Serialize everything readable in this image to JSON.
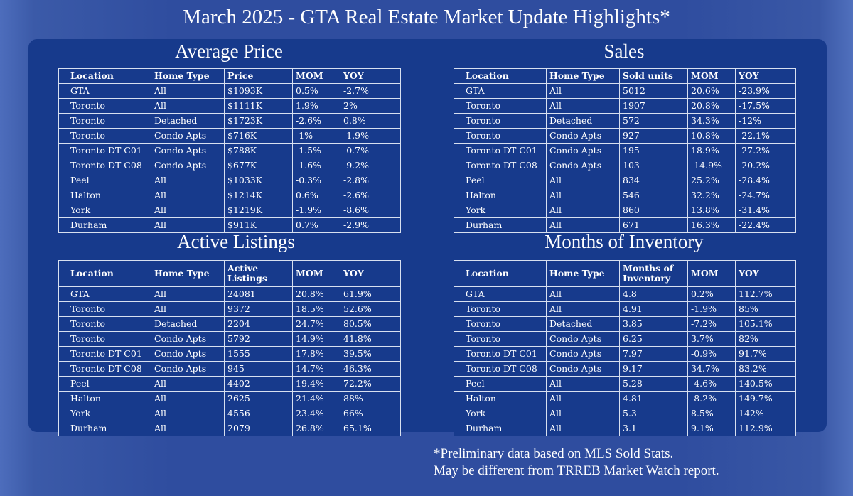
{
  "title": "March 2025 - GTA Real Estate Market Update Highlights*",
  "colors": {
    "positive": "#40e040",
    "negative": "#ff7fb0",
    "panel": "#173a8c"
  },
  "sections": [
    {
      "key": "average_price",
      "title": "Average Price",
      "headers": [
        "Location",
        "Home Type",
        "Price",
        "MOM",
        "YOY"
      ],
      "rows": [
        [
          "GTA",
          "All",
          "$1093K",
          "0.5%",
          "-2.7%"
        ],
        [
          "Toronto",
          "All",
          "$1111K",
          "1.9%",
          "2%"
        ],
        [
          "Toronto",
          "Detached",
          "$1723K",
          "-2.6%",
          "0.8%"
        ],
        [
          "Toronto",
          "Condo Apts",
          "$716K",
          "-1%",
          "-1.9%"
        ],
        [
          "Toronto DT C01",
          "Condo Apts",
          "$788K",
          "-1.5%",
          "-0.7%"
        ],
        [
          "Toronto DT C08",
          "Condo Apts",
          "$677K",
          "-1.6%",
          "-9.2%"
        ],
        [
          "Peel",
          "All",
          "$1033K",
          "-0.3%",
          "-2.8%"
        ],
        [
          "Halton",
          "All",
          "$1214K",
          "0.6%",
          "-2.6%"
        ],
        [
          "York",
          "All",
          "$1219K",
          "-1.9%",
          "-8.6%"
        ],
        [
          "Durham",
          "All",
          "$911K",
          "0.7%",
          "-2.9%"
        ]
      ]
    },
    {
      "key": "sales",
      "title": "Sales",
      "headers": [
        "Location",
        "Home Type",
        "Sold units",
        "MOM",
        "YOY"
      ],
      "rows": [
        [
          "GTA",
          "All",
          "5012",
          "20.6%",
          "-23.9%"
        ],
        [
          "Toronto",
          "All",
          "1907",
          "20.8%",
          "-17.5%"
        ],
        [
          "Toronto",
          "Detached",
          "572",
          "34.3%",
          "-12%"
        ],
        [
          "Toronto",
          "Condo Apts",
          "927",
          "10.8%",
          "-22.1%"
        ],
        [
          "Toronto DT C01",
          "Condo Apts",
          "195",
          "18.9%",
          "-27.2%"
        ],
        [
          "Toronto DT C08",
          "Condo Apts",
          "103",
          "-14.9%",
          "-20.2%"
        ],
        [
          "Peel",
          "All",
          "834",
          "25.2%",
          "-28.4%"
        ],
        [
          "Halton",
          "All",
          "546",
          "32.2%",
          "-24.7%"
        ],
        [
          "York",
          "All",
          "860",
          "13.8%",
          "-31.4%"
        ],
        [
          "Durham",
          "All",
          "671",
          "16.3%",
          "-22.4%"
        ]
      ]
    },
    {
      "key": "active_listings",
      "title": "Active Listings",
      "headers": [
        "Location",
        "Home Type",
        "Active Listings",
        "MOM",
        "YOY"
      ],
      "rows": [
        [
          "GTA",
          "All",
          "24081",
          "20.8%",
          "61.9%"
        ],
        [
          "Toronto",
          "All",
          "9372",
          "18.5%",
          "52.6%"
        ],
        [
          "Toronto",
          "Detached",
          "2204",
          "24.7%",
          "80.5%"
        ],
        [
          "Toronto",
          "Condo Apts",
          "5792",
          "14.9%",
          "41.8%"
        ],
        [
          "Toronto DT C01",
          "Condo Apts",
          "1555",
          "17.8%",
          "39.5%"
        ],
        [
          "Toronto DT C08",
          "Condo Apts",
          "945",
          "14.7%",
          "46.3%"
        ],
        [
          "Peel",
          "All",
          "4402",
          "19.4%",
          "72.2%"
        ],
        [
          "Halton",
          "All",
          "2625",
          "21.4%",
          "88%"
        ],
        [
          "York",
          "All",
          "4556",
          "23.4%",
          "66%"
        ],
        [
          "Durham",
          "All",
          "2079",
          "26.8%",
          "65.1%"
        ]
      ]
    },
    {
      "key": "months_of_inventory",
      "title": "Months of Inventory",
      "headers": [
        "Location",
        "Home Type",
        "Months of Inventory",
        "MOM",
        "YOY"
      ],
      "rows": [
        [
          "GTA",
          "All",
          "4.8",
          "0.2%",
          "112.7%"
        ],
        [
          "Toronto",
          "All",
          "4.91",
          "-1.9%",
          "85%"
        ],
        [
          "Toronto",
          "Detached",
          "3.85",
          "-7.2%",
          "105.1%"
        ],
        [
          "Toronto",
          "Condo Apts",
          "6.25",
          "3.7%",
          "82%"
        ],
        [
          "Toronto DT C01",
          "Condo Apts",
          "7.97",
          "-0.9%",
          "91.7%"
        ],
        [
          "Toronto DT C08",
          "Condo Apts",
          "9.17",
          "34.7%",
          "83.2%"
        ],
        [
          "Peel",
          "All",
          "5.28",
          "-4.6%",
          "140.5%"
        ],
        [
          "Halton",
          "All",
          "4.81",
          "-8.2%",
          "149.7%"
        ],
        [
          "York",
          "All",
          "5.3",
          "8.5%",
          "142%"
        ],
        [
          "Durham",
          "All",
          "3.1",
          "9.1%",
          "112.9%"
        ]
      ]
    }
  ],
  "footnote": {
    "line1": "*Preliminary data based on MLS Sold Stats.",
    "line2": "May be different from TRREB Market Watch report."
  }
}
